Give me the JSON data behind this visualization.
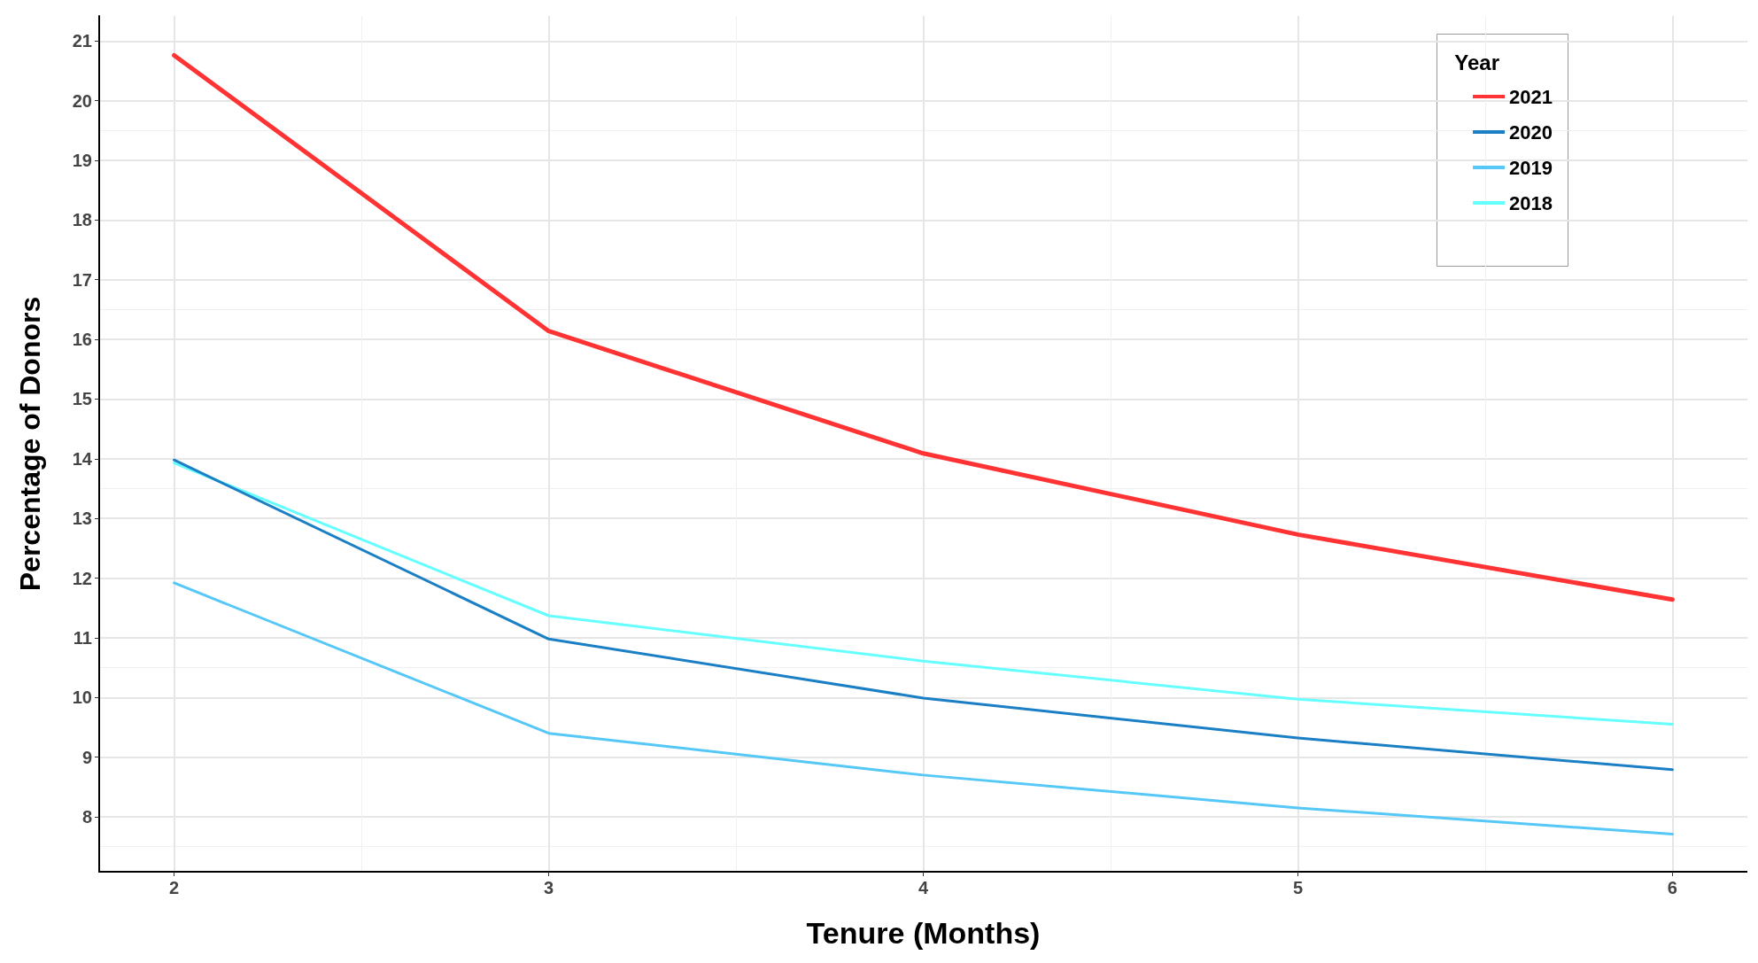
{
  "chart_data": {
    "type": "line",
    "xlabel": "Tenure (Months)",
    "ylabel": "Percentage of Donors",
    "legend_title": "Year",
    "x": [
      2,
      3,
      4,
      5,
      6
    ],
    "series": [
      {
        "name": "2021",
        "color": "#ff3333",
        "values": [
          20.76,
          16.14,
          14.09,
          12.73,
          11.64
        ]
      },
      {
        "name": "2020",
        "color": "#1a7fc4",
        "values": [
          13.98,
          10.98,
          9.99,
          9.32,
          8.79
        ]
      },
      {
        "name": "2019",
        "color": "#55c8f7",
        "values": [
          11.92,
          9.4,
          8.7,
          8.15,
          7.71
        ]
      },
      {
        "name": "2018",
        "color": "#66ffff",
        "values": [
          13.93,
          11.37,
          10.61,
          9.97,
          9.55
        ]
      }
    ],
    "xlim": [
      1.8,
      6.2
    ],
    "xticks": [
      2,
      3,
      4,
      5,
      6
    ],
    "ylim": [
      7.08,
      21.42
    ],
    "yticks": [
      8,
      9,
      10,
      11,
      12,
      13,
      14,
      15,
      16,
      17,
      18,
      19,
      20,
      21
    ],
    "grid": true,
    "legend": "top right",
    "marker": "none",
    "line_style": "solid"
  }
}
